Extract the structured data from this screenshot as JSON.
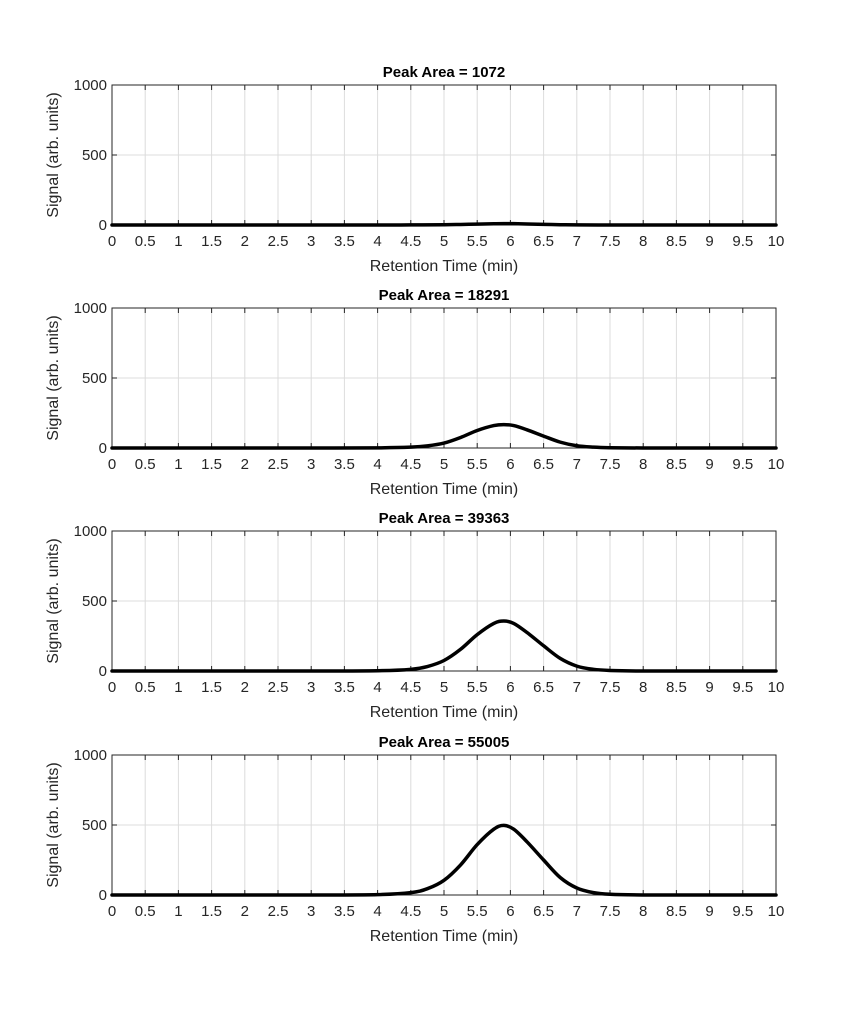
{
  "chart_data": [
    {
      "type": "line",
      "title": "Peak Area = 1072",
      "xlabel": "Retention Time (min)",
      "ylabel": "Signal (arb. units)",
      "xlim": [
        0,
        10
      ],
      "ylim": [
        0,
        1000
      ],
      "xticks": [
        "0",
        "0.5",
        "1",
        "1.5",
        "2",
        "2.5",
        "3",
        "3.5",
        "4",
        "4.5",
        "5",
        "5.5",
        "6",
        "6.5",
        "7",
        "7.5",
        "8",
        "8.5",
        "9",
        "9.5",
        "10"
      ],
      "yticks": [
        "0",
        "500",
        "1000"
      ],
      "grid": true,
      "legend": "none",
      "series": [
        {
          "color": "#000000",
          "x": [
            0,
            1,
            2,
            3,
            4,
            4.5,
            5,
            5.25,
            5.5,
            5.75,
            5.9,
            6.05,
            6.25,
            6.5,
            6.75,
            7,
            7.5,
            8,
            9,
            10
          ],
          "y": [
            0,
            0,
            0,
            0,
            0,
            0.5,
            2,
            4,
            6.5,
            9,
            10,
            9.5,
            7.5,
            4.5,
            2,
            1,
            0.2,
            0,
            0,
            0
          ]
        }
      ]
    },
    {
      "type": "line",
      "title": "Peak Area = 18291",
      "xlabel": "Retention Time (min)",
      "ylabel": "Signal (arb. units)",
      "xlim": [
        0,
        10
      ],
      "ylim": [
        0,
        1000
      ],
      "xticks": [
        "0",
        "0.5",
        "1",
        "1.5",
        "2",
        "2.5",
        "3",
        "3.5",
        "4",
        "4.5",
        "5",
        "5.5",
        "6",
        "6.5",
        "7",
        "7.5",
        "8",
        "8.5",
        "9",
        "9.5",
        "10"
      ],
      "yticks": [
        "0",
        "500",
        "1000"
      ],
      "grid": true,
      "legend": "none",
      "series": [
        {
          "color": "#000000",
          "x": [
            0,
            1,
            2,
            3,
            4,
            4.5,
            4.75,
            5,
            5.25,
            5.5,
            5.75,
            5.9,
            6.05,
            6.25,
            6.5,
            6.75,
            7,
            7.25,
            7.5,
            8,
            9,
            10
          ],
          "y": [
            0,
            0,
            0,
            0,
            1,
            6,
            15,
            35,
            75,
            125,
            160,
            167,
            160,
            130,
            85,
            42,
            16,
            6,
            2,
            0,
            0,
            0
          ]
        }
      ]
    },
    {
      "type": "line",
      "title": "Peak Area = 39363",
      "xlabel": "Retention Time (min)",
      "ylabel": "Signal (arb. units)",
      "xlim": [
        0,
        10
      ],
      "ylim": [
        0,
        1000
      ],
      "xticks": [
        "0",
        "0.5",
        "1",
        "1.5",
        "2",
        "2.5",
        "3",
        "3.5",
        "4",
        "4.5",
        "5",
        "5.5",
        "6",
        "6.5",
        "7",
        "7.5",
        "8",
        "8.5",
        "9",
        "9.5",
        "10"
      ],
      "yticks": [
        "0",
        "500",
        "1000"
      ],
      "grid": true,
      "legend": "none",
      "series": [
        {
          "color": "#000000",
          "x": [
            0,
            1,
            2,
            3,
            4,
            4.5,
            4.75,
            5,
            5.25,
            5.5,
            5.75,
            5.9,
            6.05,
            6.25,
            6.5,
            6.75,
            7,
            7.25,
            7.5,
            8,
            9,
            10
          ],
          "y": [
            0,
            0,
            0,
            0,
            2,
            12,
            32,
            75,
            155,
            260,
            340,
            357,
            340,
            275,
            180,
            90,
            35,
            12,
            4,
            0,
            0,
            0
          ]
        }
      ]
    },
    {
      "type": "line",
      "title": "Peak Area = 55005",
      "xlabel": "Retention Time (min)",
      "ylabel": "Signal (arb. units)",
      "xlim": [
        0,
        10
      ],
      "ylim": [
        0,
        1000
      ],
      "xticks": [
        "0",
        "0.5",
        "1",
        "1.5",
        "2",
        "2.5",
        "3",
        "3.5",
        "4",
        "4.5",
        "5",
        "5.5",
        "6",
        "6.5",
        "7",
        "7.5",
        "8",
        "8.5",
        "9",
        "9.5",
        "10"
      ],
      "yticks": [
        "0",
        "500",
        "1000"
      ],
      "grid": true,
      "legend": "none",
      "series": [
        {
          "color": "#000000",
          "x": [
            0,
            1,
            2,
            3,
            4,
            4.5,
            4.75,
            5,
            5.25,
            5.5,
            5.75,
            5.9,
            6.05,
            6.25,
            6.5,
            6.75,
            7,
            7.25,
            7.5,
            8,
            9,
            10
          ],
          "y": [
            0,
            0,
            0,
            0,
            3,
            17,
            45,
            105,
            215,
            360,
            470,
            497,
            470,
            380,
            250,
            125,
            50,
            17,
            5,
            0,
            0,
            0
          ]
        }
      ]
    }
  ]
}
